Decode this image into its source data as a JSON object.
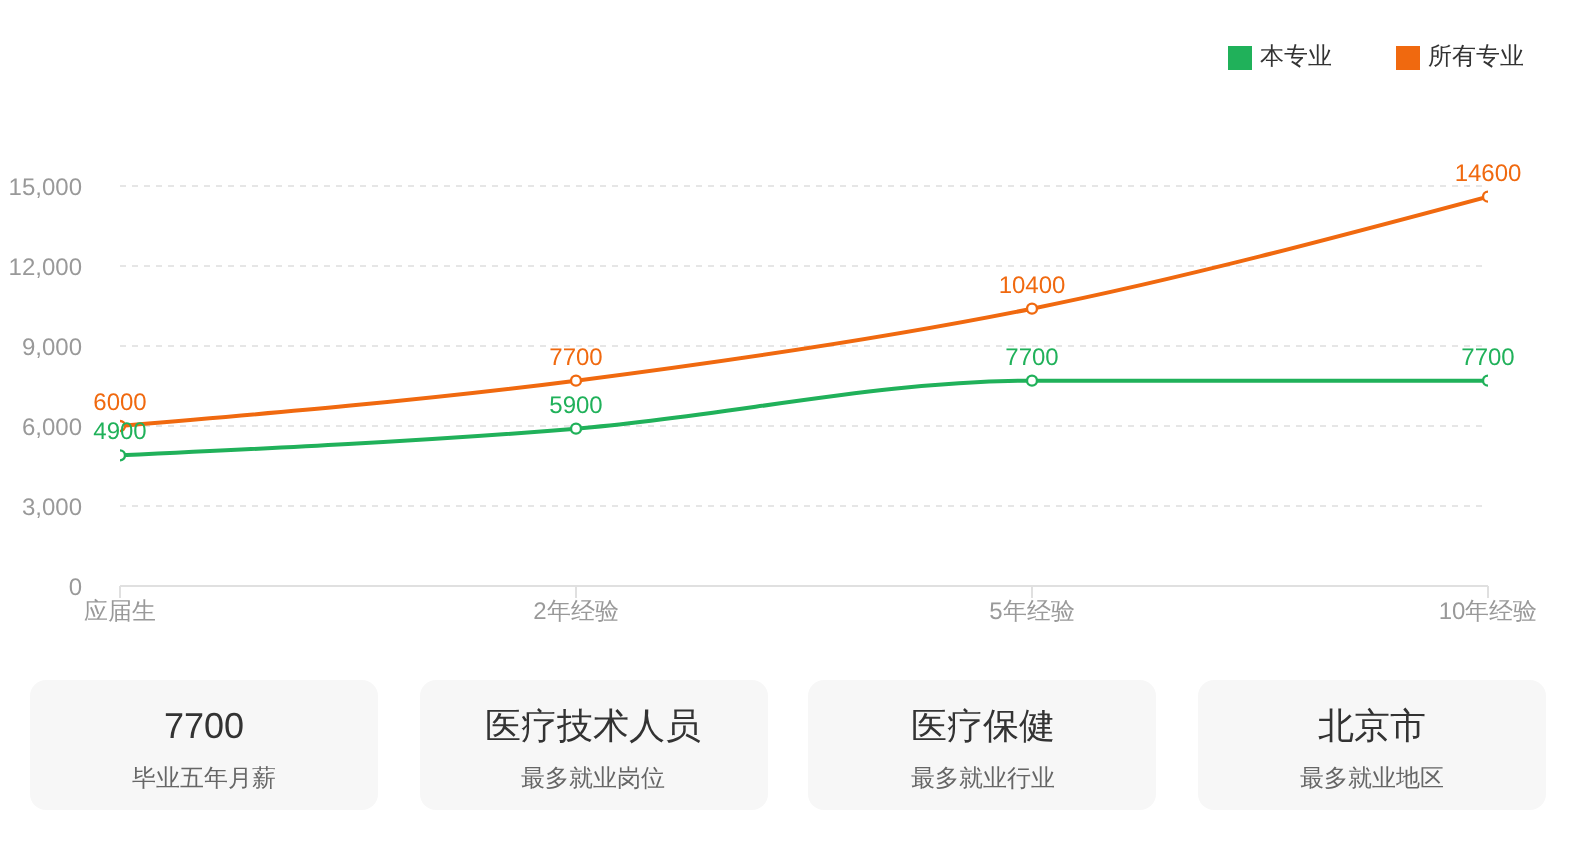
{
  "chart_data": [
    {
      "type": "line",
      "categories": [
        "应届生",
        "2年经验",
        "5年经验",
        "10年经验"
      ],
      "series": [
        {
          "name": "本专业",
          "color": "#20b15a",
          "values": [
            4900,
            5900,
            7700,
            7700
          ]
        },
        {
          "name": "所有专业",
          "color": "#f0690f",
          "values": [
            6000,
            7700,
            10400,
            14600
          ]
        }
      ],
      "ylim": [
        0,
        15000
      ],
      "yticks": [
        0,
        {
          "value": 3000,
          "label": "3,000"
        },
        {
          "value": 6000,
          "label": "6,000"
        },
        {
          "value": 9000,
          "label": "9,000"
        },
        {
          "value": 12000,
          "label": "12,000"
        },
        {
          "value": 15000,
          "label": "15,000"
        }
      ],
      "grid": "y",
      "legend": "top right",
      "marker": "circle",
      "data_labels": true
    },
    {
      "type": "other",
      "title": "7700",
      "subtitle": "毕业五年月薪"
    },
    {
      "type": "other",
      "title": "医疗技术人员",
      "subtitle": "最多就业岗位"
    },
    {
      "type": "other",
      "title": "医疗保健",
      "subtitle": "最多就业行业"
    },
    {
      "type": "other",
      "title": "北京市",
      "subtitle": "最多就业地区"
    }
  ]
}
